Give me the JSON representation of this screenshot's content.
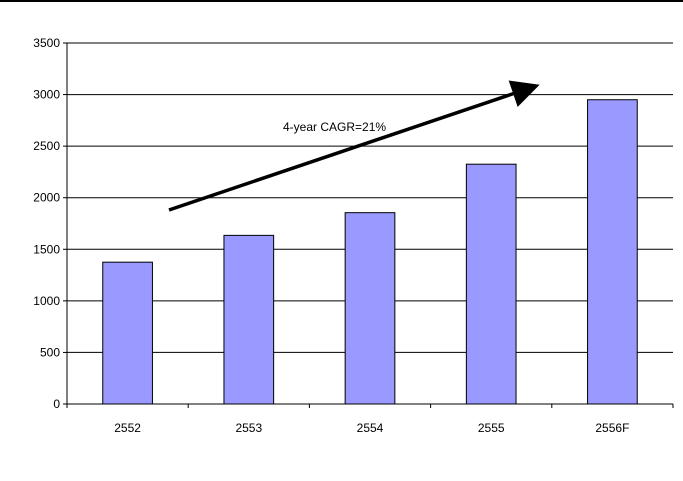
{
  "chart_data": {
    "type": "bar",
    "categories": [
      "2552",
      "2553",
      "2554",
      "2555",
      "2556F"
    ],
    "values": [
      1375,
      1635,
      1855,
      2325,
      2950
    ],
    "title": "",
    "xlabel": "",
    "ylabel": "",
    "ylim": [
      0,
      3500
    ],
    "yticks": [
      0,
      500,
      1000,
      1500,
      2000,
      2500,
      3000,
      3500
    ],
    "ytick_labels": [
      "0",
      "500",
      "1000",
      "1500",
      "2000",
      "2500",
      "3000",
      "3500"
    ],
    "grid": true,
    "legend": "none",
    "bar_color": "#9999ff",
    "bar_edge_color": "#000000",
    "annotation": {
      "text": "4-year CAGR=21%",
      "arrow": true
    }
  }
}
